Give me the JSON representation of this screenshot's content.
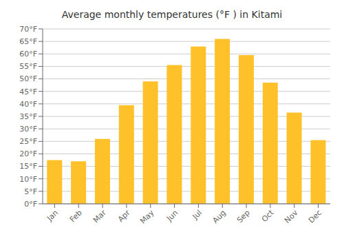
{
  "chart_data": {
    "type": "bar",
    "title": "Average monthly temperatures (°F ) in Kitami",
    "categories": [
      "Jan",
      "Feb",
      "Mar",
      "Apr",
      "May",
      "Jun",
      "Jul",
      "Aug",
      "Sep",
      "Oct",
      "Nov",
      "Dec"
    ],
    "values": [
      17.5,
      17.0,
      26.0,
      39.5,
      49.0,
      55.5,
      63.0,
      66.0,
      59.5,
      48.5,
      36.5,
      25.5
    ],
    "color": "#FFC12A",
    "ylim": [
      0,
      70
    ],
    "yticks": [
      {
        "value": 0,
        "label": "0°F"
      },
      {
        "value": 5,
        "label": "5°F"
      },
      {
        "value": 10,
        "label": "10°F"
      },
      {
        "value": 15,
        "label": "15°F"
      },
      {
        "value": 20,
        "label": "20°F"
      },
      {
        "value": 25,
        "label": "25°F"
      },
      {
        "value": 30,
        "label": "30°F"
      },
      {
        "value": 35,
        "label": "35°F"
      },
      {
        "value": 40,
        "label": "40°F"
      },
      {
        "value": 45,
        "label": "45°F"
      },
      {
        "value": 50,
        "label": "50°F"
      },
      {
        "value": 55,
        "label": "55°F"
      },
      {
        "value": 60,
        "label": "60°F"
      },
      {
        "value": 65,
        "label": "65°F"
      },
      {
        "value": 70,
        "label": "70°F"
      }
    ],
    "grid": true
  }
}
